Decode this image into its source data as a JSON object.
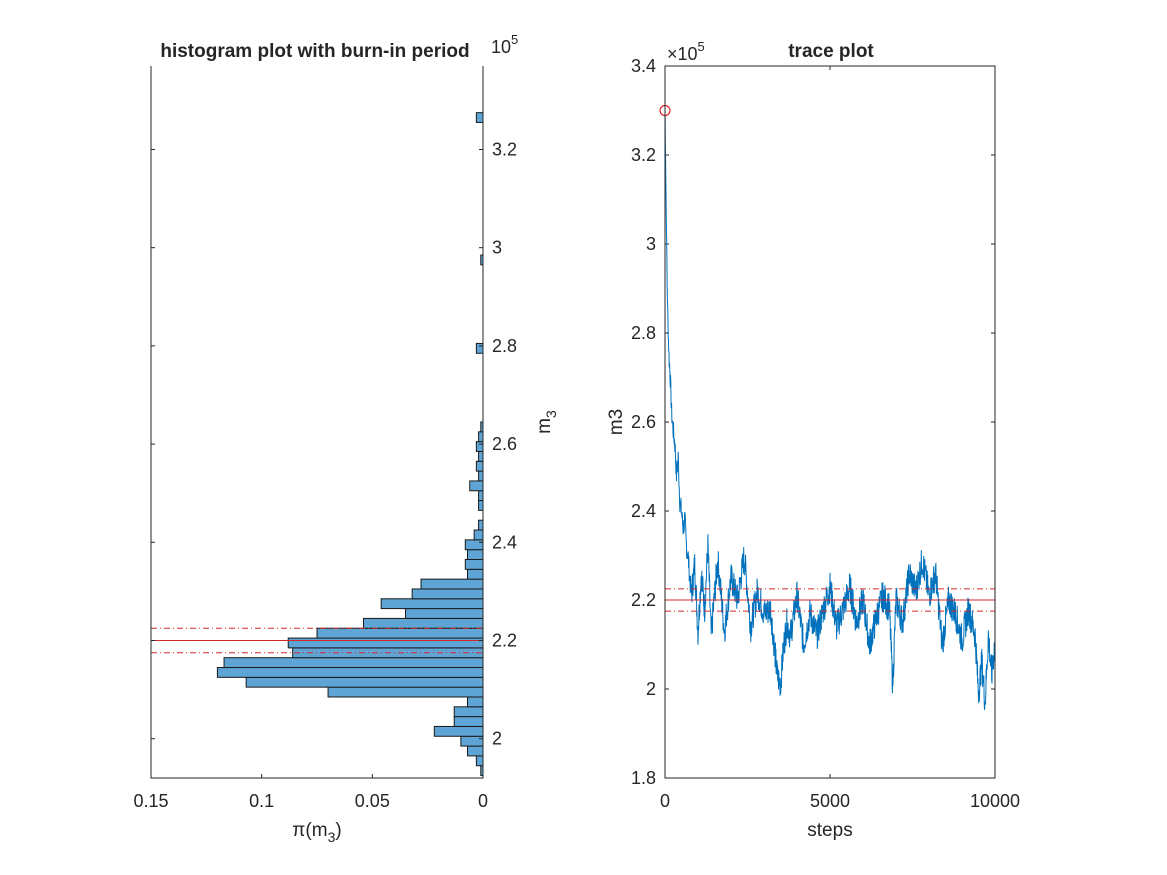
{
  "chart_data": [
    {
      "type": "bar",
      "orientation": "horizontal",
      "title": "histogram plot with burn-in period",
      "xlabel_parts": {
        "base": "π(m",
        "sub": "3",
        "close": ")"
      },
      "ylabel_parts": {
        "base": "m",
        "sub": "3"
      },
      "xlim": [
        0.15,
        0
      ],
      "xticks": [
        "0.15",
        "0.1",
        "0.05",
        "0"
      ],
      "ylim": [
        192000,
        337000
      ],
      "yticks": [
        "2",
        "2.2",
        "2.4",
        "2.6",
        "2.8",
        "3",
        "3.2"
      ],
      "exponent_parts": {
        "base": "10",
        "sup": "5"
      },
      "bar_color": "#5ea5d6",
      "edge_color": "#1a1a1a",
      "bins": [
        {
          "m3": 193500,
          "density": 0.001
        },
        {
          "m3": 195500,
          "density": 0.003
        },
        {
          "m3": 197500,
          "density": 0.007
        },
        {
          "m3": 199500,
          "density": 0.01
        },
        {
          "m3": 201500,
          "density": 0.022
        },
        {
          "m3": 203500,
          "density": 0.013
        },
        {
          "m3": 205500,
          "density": 0.013
        },
        {
          "m3": 207500,
          "density": 0.007
        },
        {
          "m3": 209500,
          "density": 0.07
        },
        {
          "m3": 211500,
          "density": 0.107
        },
        {
          "m3": 213500,
          "density": 0.12
        },
        {
          "m3": 215500,
          "density": 0.117
        },
        {
          "m3": 217500,
          "density": 0.086
        },
        {
          "m3": 219500,
          "density": 0.088
        },
        {
          "m3": 221500,
          "density": 0.075
        },
        {
          "m3": 223500,
          "density": 0.054
        },
        {
          "m3": 225500,
          "density": 0.035
        },
        {
          "m3": 227500,
          "density": 0.046
        },
        {
          "m3": 229500,
          "density": 0.032
        },
        {
          "m3": 231500,
          "density": 0.028
        },
        {
          "m3": 233500,
          "density": 0.007
        },
        {
          "m3": 235500,
          "density": 0.008
        },
        {
          "m3": 237500,
          "density": 0.007
        },
        {
          "m3": 239500,
          "density": 0.008
        },
        {
          "m3": 241500,
          "density": 0.004
        },
        {
          "m3": 243500,
          "density": 0.002
        },
        {
          "m3": 247500,
          "density": 0.002
        },
        {
          "m3": 249500,
          "density": 0.002
        },
        {
          "m3": 251500,
          "density": 0.006
        },
        {
          "m3": 253500,
          "density": 0.002
        },
        {
          "m3": 255500,
          "density": 0.003
        },
        {
          "m3": 257500,
          "density": 0.002
        },
        {
          "m3": 259500,
          "density": 0.003
        },
        {
          "m3": 261500,
          "density": 0.002
        },
        {
          "m3": 263500,
          "density": 0.001
        },
        {
          "m3": 279500,
          "density": 0.003
        },
        {
          "m3": 297500,
          "density": 0.001
        },
        {
          "m3": 326500,
          "density": 0.003
        }
      ],
      "reference_lines": [
        {
          "m3": 220000,
          "style": "solid",
          "color": "#d62728"
        },
        {
          "m3": 222500,
          "style": "dashdot",
          "color": "#d62728"
        },
        {
          "m3": 217500,
          "style": "dashdot",
          "color": "#d62728"
        }
      ]
    },
    {
      "type": "line",
      "title": "trace plot",
      "xlabel": "steps",
      "ylabel": "m3",
      "xlim": [
        0,
        10000
      ],
      "xticks": [
        "0",
        "5000",
        "10000"
      ],
      "ylim": [
        180000,
        340000
      ],
      "yticks": [
        "1.8",
        "2",
        "2.2",
        "2.4",
        "2.6",
        "2.8",
        "3",
        "3.2",
        "3.4"
      ],
      "exponent_parts": {
        "prefix": "×",
        "base": "10",
        "sup": "5"
      },
      "line_color": "#0072bd",
      "trace": {
        "x": [
          0,
          10,
          25,
          50,
          80,
          120,
          160,
          200,
          250,
          300,
          350,
          400,
          450,
          500,
          550,
          600,
          650,
          700,
          750,
          800,
          900,
          1000,
          1100,
          1200,
          1300,
          1400,
          1500,
          1600,
          1800,
          2000,
          2200,
          2400,
          2600,
          2800,
          3000,
          3200,
          3400,
          3500,
          3600,
          3700,
          3800,
          4000,
          4200,
          4400,
          4600,
          4800,
          5000,
          5200,
          5400,
          5600,
          5800,
          6000,
          6200,
          6400,
          6600,
          6800,
          6900,
          7000,
          7200,
          7400,
          7600,
          7800,
          8000,
          8200,
          8400,
          8600,
          8800,
          9000,
          9200,
          9400,
          9500,
          9600,
          9700,
          9800,
          9900,
          10000
        ],
        "y": [
          330000,
          325000,
          315000,
          300000,
          285000,
          275000,
          270000,
          262000,
          258000,
          255000,
          248000,
          252000,
          242000,
          240000,
          236000,
          238000,
          232000,
          230000,
          225000,
          221000,
          228000,
          213000,
          226000,
          218000,
          232000,
          212000,
          221000,
          229000,
          213000,
          225000,
          220000,
          230000,
          214000,
          222000,
          217000,
          218000,
          203000,
          201000,
          210000,
          215000,
          212000,
          221000,
          210000,
          217000,
          212000,
          218000,
          223000,
          214000,
          218000,
          223000,
          215000,
          220000,
          210000,
          216000,
          221000,
          218000,
          201000,
          220000,
          215000,
          226000,
          222000,
          229000,
          221000,
          226000,
          210000,
          220000,
          217000,
          211000,
          218000,
          212000,
          199000,
          206000,
          197000,
          212000,
          203000,
          211000
        ]
      },
      "start_marker": {
        "x": 0,
        "y": 330000,
        "color": "#e00000"
      },
      "reference_lines": [
        {
          "m3": 220000,
          "style": "solid",
          "color": "#d62728"
        },
        {
          "m3": 222500,
          "style": "dashdot",
          "color": "#d62728"
        },
        {
          "m3": 217500,
          "style": "dashdot",
          "color": "#d62728"
        }
      ]
    }
  ]
}
